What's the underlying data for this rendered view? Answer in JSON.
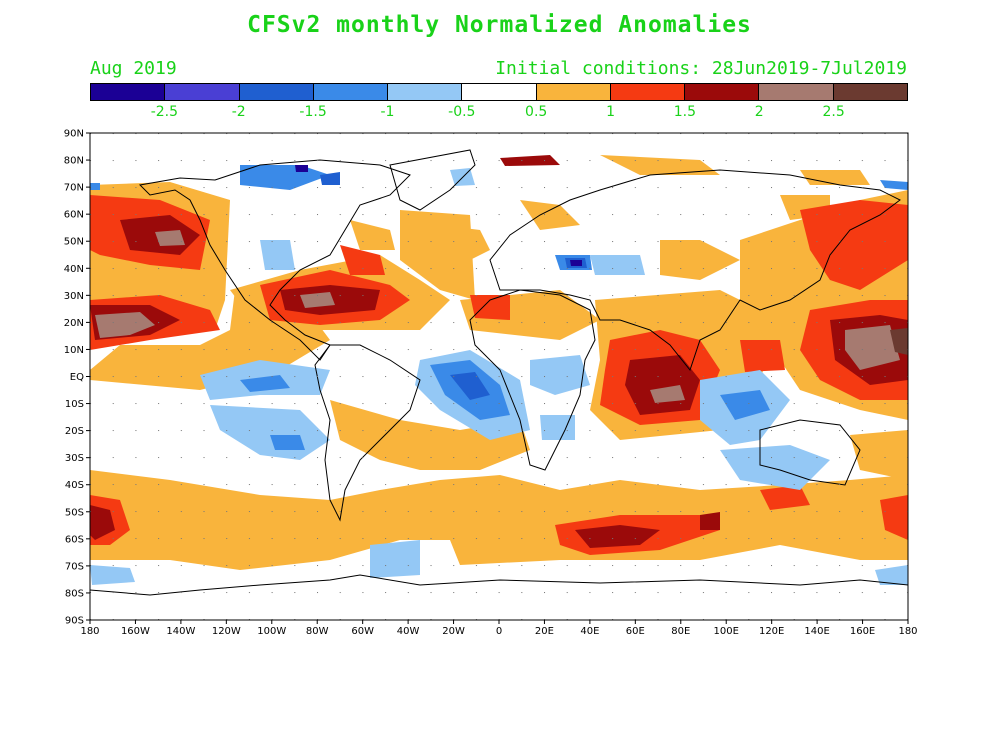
{
  "title": "CFSv2 monthly Normalized Anomalies",
  "month_label": "Aug 2019",
  "initial_conditions": "Initial conditions: 28Jun2019-7Jul2019",
  "colorbar": {
    "colors": [
      "#1b0095",
      "#4a3fd4",
      "#1f5fd0",
      "#3a8ae8",
      "#94c8f5",
      "#ffffff",
      "#f9b43c",
      "#f53a12",
      "#9b0a0a",
      "#a67a70",
      "#6b3a30"
    ],
    "labels": [
      "-2.5",
      "-2",
      "-1.5",
      "-1",
      "-0.5",
      "0.5",
      "1",
      "1.5",
      "2",
      "2.5"
    ]
  },
  "map": {
    "lat_labels": [
      "90N",
      "80N",
      "70N",
      "60N",
      "50N",
      "40N",
      "30N",
      "20N",
      "10N",
      "EQ",
      "10S",
      "20S",
      "30S",
      "40S",
      "50S",
      "60S",
      "70S",
      "80S",
      "90S"
    ],
    "lon_labels": [
      "180",
      "160W",
      "140W",
      "120W",
      "100W",
      "80W",
      "60W",
      "40W",
      "20W",
      "0",
      "20E",
      "40E",
      "60E",
      "80E",
      "100E",
      "120E",
      "140E",
      "160E",
      "180"
    ]
  }
}
